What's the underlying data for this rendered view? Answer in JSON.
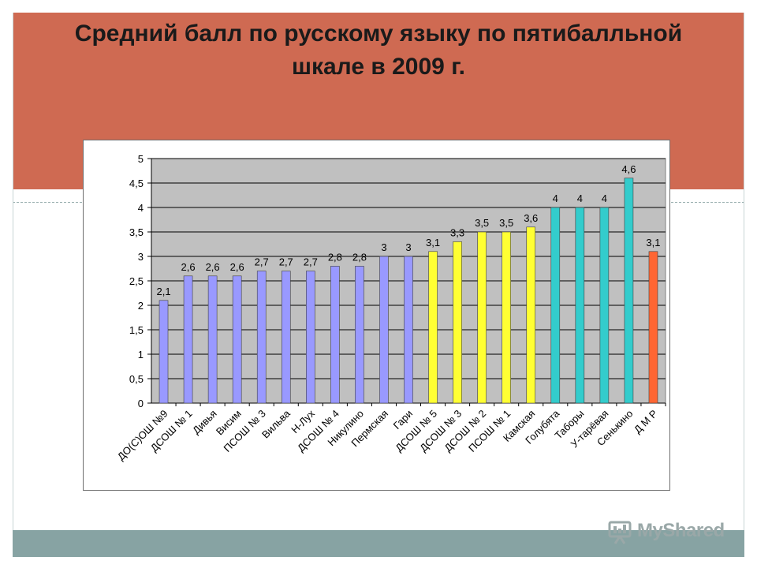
{
  "slide": {
    "title_line1": "Средний балл по русскому языку по пятибалльной",
    "title_line2": "шкале в 2009 г.",
    "watermark": "MyShared",
    "colors": {
      "header": "#cf6a52",
      "footer": "#87a3a3",
      "plot_bg": "#c0c0c0"
    }
  },
  "chart_data": {
    "type": "bar",
    "title": "Средний балл по русскому языку по пятибалльной шкале в 2009 г.",
    "xlabel": "",
    "ylabel": "",
    "ylim": [
      0,
      5
    ],
    "yticks": [
      "0",
      "0,5",
      "1",
      "1,5",
      "2",
      "2,5",
      "3",
      "3,5",
      "4",
      "4,5",
      "5"
    ],
    "grid": true,
    "categories": [
      "ДО(С)ОШ №9",
      "ДСОШ № 1",
      "Дивья",
      "Висим",
      "ПСОШ № 3",
      "Вильва",
      "Н-Лух",
      "ДСОШ № 4",
      "Никулино",
      "Пермская",
      "Гари",
      "ДСОШ № 5",
      "ДСОШ № 3",
      "ДСОШ № 2",
      "ПСОШ № 1",
      "Камская",
      "Голубята",
      "Таборы",
      "У-тарёвая",
      "Сенькино",
      "Д М Р"
    ],
    "values": [
      2.1,
      2.6,
      2.6,
      2.6,
      2.7,
      2.7,
      2.7,
      2.8,
      2.8,
      3,
      3,
      3.1,
      3.3,
      3.5,
      3.5,
      3.6,
      4,
      4,
      4,
      4.6,
      3.1
    ],
    "value_labels": [
      "2,1",
      "2,6",
      "2,6",
      "2,6",
      "2,7",
      "2,7",
      "2,7",
      "2,8",
      "2,8",
      "3",
      "3",
      "3,1",
      "3,3",
      "3,5",
      "3,5",
      "3,6",
      "4",
      "4",
      "4",
      "4,6",
      "3,1"
    ],
    "bar_colors": [
      "#9999ff",
      "#9999ff",
      "#9999ff",
      "#9999ff",
      "#9999ff",
      "#9999ff",
      "#9999ff",
      "#9999ff",
      "#9999ff",
      "#9999ff",
      "#9999ff",
      "#ffff33",
      "#ffff33",
      "#ffff33",
      "#ffff33",
      "#ffff33",
      "#33cccc",
      "#33cccc",
      "#33cccc",
      "#33cccc",
      "#ff6633"
    ]
  }
}
